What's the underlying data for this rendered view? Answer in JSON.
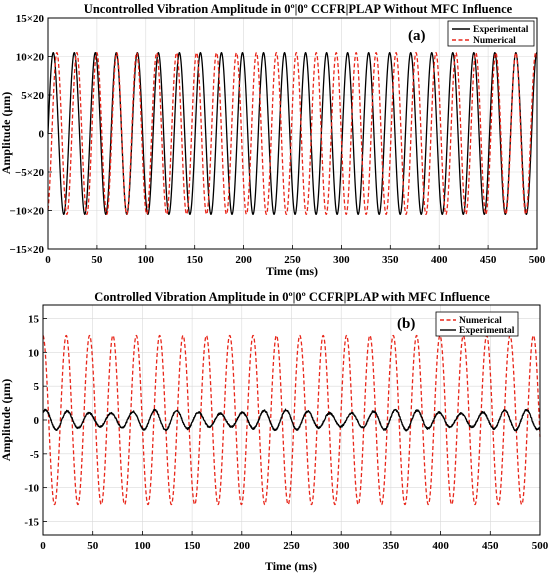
{
  "chart_data": [
    {
      "type": "line",
      "title": "Uncontrolled Vibration Amplitude in 0º|0º CCFR|PLAP  Without MFC Influence",
      "panel_label": "(a)",
      "xlabel": "Time (ms)",
      "ylabel": "Amplitude (μm)",
      "xlim": [
        0,
        500
      ],
      "ylim": [
        -15,
        15
      ],
      "xticks": [
        0,
        50,
        100,
        150,
        200,
        250,
        300,
        350,
        400,
        450,
        500
      ],
      "yticks": [
        -15,
        -10,
        -5,
        0,
        5,
        10,
        15
      ],
      "ytick_labels": [
        "−15×20",
        "−10×20",
        "−5×20",
        "0",
        "5×20",
        "10×20",
        "15×20"
      ],
      "grid": true,
      "legend_position": "top-right",
      "series": [
        {
          "name": "Experimental",
          "color": "#000000",
          "style": "solid",
          "form": "sine",
          "amplitude": 10.5,
          "period_ms": 21.5,
          "phase_ms": 0
        },
        {
          "name": "Numerical",
          "color": "#e8261a",
          "style": "dashed",
          "form": "sine",
          "amplitude": 10.5,
          "period_ms": 20.4,
          "phase_ms": 4
        }
      ]
    },
    {
      "type": "line",
      "title": "Controlled Vibration Amplitude in 0º|0º CCFR|PLAP  with MFC Influence",
      "panel_label": "(b)",
      "xlabel": "Time (ms)",
      "ylabel": "Amplitude (μm)",
      "xlim": [
        0,
        500
      ],
      "ylim": [
        -17,
        17
      ],
      "xticks": [
        0,
        50,
        100,
        150,
        200,
        250,
        300,
        350,
        400,
        450,
        500
      ],
      "yticks": [
        -15,
        -10,
        -5,
        0,
        5,
        10,
        15
      ],
      "ytick_labels": [
        "-15",
        "-10",
        "-5",
        "0",
        "5",
        "10",
        "15"
      ],
      "grid": true,
      "legend_position": "top-right",
      "series": [
        {
          "name": "Numerical",
          "color": "#e8261a",
          "style": "dashed",
          "form": "sine",
          "amplitude": 12.5,
          "period_ms": 23.5,
          "phase_ms": -6
        },
        {
          "name": "Experimental",
          "color": "#000000",
          "style": "solid",
          "form": "noisy-sine",
          "amplitude": 1.5,
          "period_ms": 22.0,
          "phase_ms": -3,
          "noise": 0.25,
          "modulation_depth": 0.35,
          "modulation_period_ms": 120
        }
      ]
    }
  ]
}
